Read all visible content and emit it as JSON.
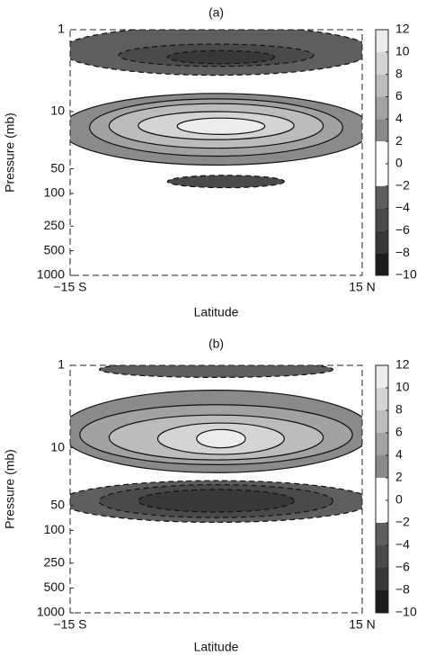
{
  "chart_data": [
    {
      "type": "contour",
      "title": "(a)",
      "xlabel": "Latitude",
      "ylabel": "Pressure (mb)",
      "xlim": [
        -15,
        15
      ],
      "xticks": [
        {
          "value": -15,
          "label": "−15 S"
        },
        {
          "value": 15,
          "label": "15 N"
        }
      ],
      "ylim": [
        1000,
        1
      ],
      "yscale": "log",
      "yticks": [
        1,
        10,
        50,
        100,
        250,
        500,
        1000
      ],
      "colorbar": {
        "levels": [
          -10,
          -8,
          -6,
          -4,
          -2,
          2,
          4,
          6,
          8,
          10,
          12
        ],
        "colors": [
          "#1c1c1c",
          "#383838",
          "#4a4a4a",
          "#5e5e5e",
          "#ffffff",
          "#8a8a8a",
          "#a2a2a2",
          "#bcbcbc",
          "#d4d4d4",
          "#ececec"
        ],
        "ticks": [
          12,
          10,
          8,
          6,
          4,
          2,
          0,
          {
            "value": -2,
            "label": "−2"
          },
          {
            "value": -4,
            "label": "−4"
          },
          {
            "value": -6,
            "label": "−6"
          },
          {
            "value": -8,
            "label": "−8"
          },
          {
            "value": -10,
            "label": "−10"
          }
        ]
      },
      "regions": [
        {
          "value": -3,
          "lat": [
            -16,
            16
          ],
          "p": [
            0.9,
            3.6
          ]
        },
        {
          "value": -5,
          "lat": [
            -10,
            10
          ],
          "p": [
            1.5,
            2.8
          ]
        },
        {
          "value": -7,
          "lat": [
            -5,
            6
          ],
          "p": [
            1.8,
            2.6
          ]
        },
        {
          "value": 3,
          "lat": [
            -16,
            16
          ],
          "p": [
            6,
            45
          ]
        },
        {
          "value": 5,
          "lat": [
            -13,
            13
          ],
          "p": [
            7,
            35
          ]
        },
        {
          "value": 7,
          "lat": [
            -11,
            11
          ],
          "p": [
            8,
            28
          ]
        },
        {
          "value": 9,
          "lat": [
            -8,
            8
          ],
          "p": [
            10,
            22
          ]
        },
        {
          "value": 11,
          "lat": [
            -4,
            5
          ],
          "p": [
            12,
            19
          ]
        },
        {
          "value": -5,
          "lat": [
            -5,
            7
          ],
          "p": [
            60,
            85
          ]
        }
      ]
    },
    {
      "type": "contour",
      "title": "(b)",
      "xlabel": "Latitude",
      "ylabel": "Pressure (mb)",
      "xlim": [
        -15,
        15
      ],
      "xticks": [
        {
          "value": -15,
          "label": "−15 S"
        },
        {
          "value": 15,
          "label": "15 N"
        }
      ],
      "ylim": [
        1000,
        1
      ],
      "yscale": "log",
      "yticks": [
        1,
        10,
        50,
        100,
        250,
        500,
        1000
      ],
      "colorbar": {
        "levels": [
          -10,
          -8,
          -6,
          -4,
          -2,
          2,
          4,
          6,
          8,
          10,
          12
        ],
        "colors": [
          "#1c1c1c",
          "#383838",
          "#4a4a4a",
          "#5e5e5e",
          "#ffffff",
          "#8a8a8a",
          "#a2a2a2",
          "#bcbcbc",
          "#d4d4d4",
          "#ececec"
        ],
        "ticks": [
          12,
          10,
          8,
          6,
          4,
          2,
          0,
          {
            "value": -2,
            "label": "−2"
          },
          {
            "value": -4,
            "label": "−4"
          },
          {
            "value": -6,
            "label": "−6"
          },
          {
            "value": -8,
            "label": "−8"
          },
          {
            "value": -10,
            "label": "−10"
          }
        ]
      },
      "regions": [
        {
          "value": -3,
          "lat": [
            -12,
            12
          ],
          "p": [
            0.9,
            1.4
          ]
        },
        {
          "value": 3,
          "lat": [
            -16,
            16
          ],
          "p": [
            2,
            20
          ]
        },
        {
          "value": 5,
          "lat": [
            -14,
            14
          ],
          "p": [
            3,
            16
          ]
        },
        {
          "value": 7,
          "lat": [
            -11,
            11
          ],
          "p": [
            4,
            14
          ]
        },
        {
          "value": 9,
          "lat": [
            -6,
            7
          ],
          "p": [
            5,
            12
          ]
        },
        {
          "value": 11,
          "lat": [
            -2,
            3
          ],
          "p": [
            6,
            10
          ]
        },
        {
          "value": -3,
          "lat": [
            -16,
            16
          ],
          "p": [
            25,
            80
          ]
        },
        {
          "value": -5,
          "lat": [
            -12,
            12
          ],
          "p": [
            28,
            70
          ]
        },
        {
          "value": -7,
          "lat": [
            -8,
            8
          ],
          "p": [
            32,
            60
          ]
        }
      ]
    }
  ]
}
